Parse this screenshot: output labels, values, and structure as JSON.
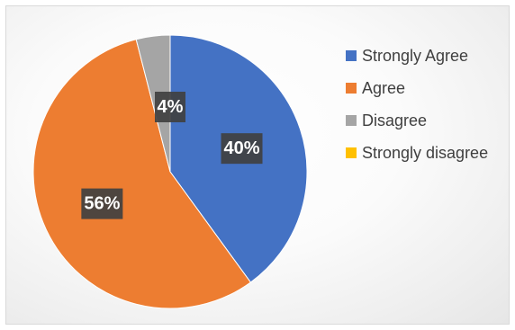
{
  "chart_data": {
    "type": "pie",
    "categories": [
      "Strongly Agree",
      "Agree",
      "Disagree",
      "Strongly disagree"
    ],
    "values": [
      40,
      56,
      4,
      0
    ],
    "data_labels": [
      "40%",
      "56%",
      "4%",
      ""
    ],
    "colors": [
      "#4472C4",
      "#ED7D31",
      "#A5A5A5",
      "#FFC000"
    ],
    "legend": {
      "position": "right",
      "entries": [
        "Strongly Agree",
        "Agree",
        "Disagree",
        "Strongly disagree"
      ]
    },
    "title": ""
  }
}
